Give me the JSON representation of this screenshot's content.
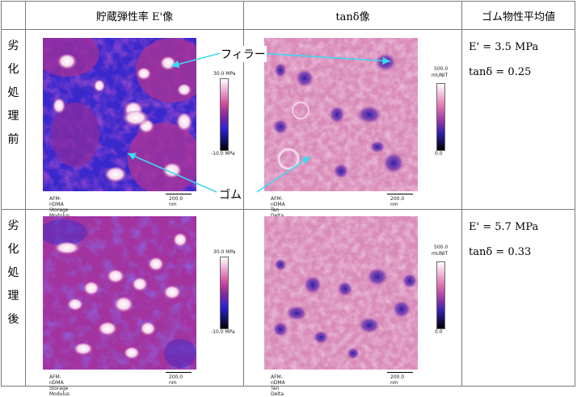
{
  "headers": {
    "blank": "",
    "storage": "貯蔵弾性率 E'像",
    "tan": "tanδ像",
    "props": "ゴム物性平均値"
  },
  "rows": [
    {
      "label": [
        "劣",
        "化",
        "処",
        "理",
        "前"
      ],
      "storage_caption": "AFM-nDMA Storage Modulus",
      "storage_scale": "200.0 nm",
      "storage_cb_max": "30.0 MPa",
      "storage_cb_min": "-10.0 MPa",
      "tan_caption": "AFM-nDMA Tan Delta",
      "tan_scale": "200.0 nm",
      "tan_cb_max": "500.0",
      "tan_cb_unit": "mUNIT",
      "tan_cb_min": "0.0",
      "e_value": "E' = 3.5 MPa",
      "tan_value": "tanδ = 0.25"
    },
    {
      "label": [
        "劣",
        "化",
        "処",
        "理",
        "後"
      ],
      "storage_caption": "AFM-nDMA Storage Modulus",
      "storage_scale": "200.0 nm",
      "storage_cb_max": "30.0 MPa",
      "storage_cb_min": "-10.0 MPa",
      "tan_caption": "AFM-nDMA Tan Delta",
      "tan_scale": "200.0 nm",
      "tan_cb_max": "500.0",
      "tan_cb_unit": "mUNIT",
      "tan_cb_min": "0.0",
      "e_value": "E' = 5.7 MPa",
      "tan_value": "tanδ = 0.33"
    }
  ],
  "annotations": {
    "filler": "フィラー",
    "rubber": "ゴム"
  },
  "colors": {
    "arrow": "#3fd8f0",
    "modulus_low": "#2a22c8",
    "modulus_high": "#ffffff",
    "tan_base": "#d98ab8",
    "tan_low": "#2d1fa8"
  }
}
